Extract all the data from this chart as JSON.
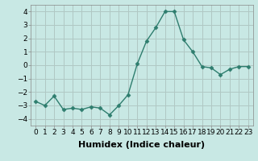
{
  "x": [
    0,
    1,
    2,
    3,
    4,
    5,
    6,
    7,
    8,
    9,
    10,
    11,
    12,
    13,
    14,
    15,
    16,
    17,
    18,
    19,
    20,
    21,
    22,
    23
  ],
  "y": [
    -2.7,
    -3.0,
    -2.3,
    -3.3,
    -3.2,
    -3.3,
    -3.1,
    -3.2,
    -3.7,
    -3.0,
    -2.2,
    0.1,
    1.8,
    2.8,
    4.0,
    4.0,
    1.9,
    1.0,
    -0.1,
    -0.2,
    -0.7,
    -0.3,
    -0.1,
    -0.1
  ],
  "line_color": "#2e7d6e",
  "marker": "D",
  "marker_size": 2.5,
  "xlabel": "Humidex (Indice chaleur)",
  "xlim": [
    -0.5,
    23.5
  ],
  "ylim": [
    -4.5,
    4.5
  ],
  "yticks": [
    -4,
    -3,
    -2,
    -1,
    0,
    1,
    2,
    3,
    4
  ],
  "xticks": [
    0,
    1,
    2,
    3,
    4,
    5,
    6,
    7,
    8,
    9,
    10,
    11,
    12,
    13,
    14,
    15,
    16,
    17,
    18,
    19,
    20,
    21,
    22,
    23
  ],
  "xtick_labels": [
    "0",
    "1",
    "2",
    "3",
    "4",
    "5",
    "6",
    "7",
    "8",
    "9",
    "10",
    "11",
    "12",
    "13",
    "14",
    "15",
    "16",
    "17",
    "18",
    "19",
    "20",
    "21",
    "22",
    "23"
  ],
  "bg_color": "#c8e8e4",
  "grid_color": "#b0c8c4",
  "tick_fontsize": 6.5,
  "xlabel_fontsize": 8
}
